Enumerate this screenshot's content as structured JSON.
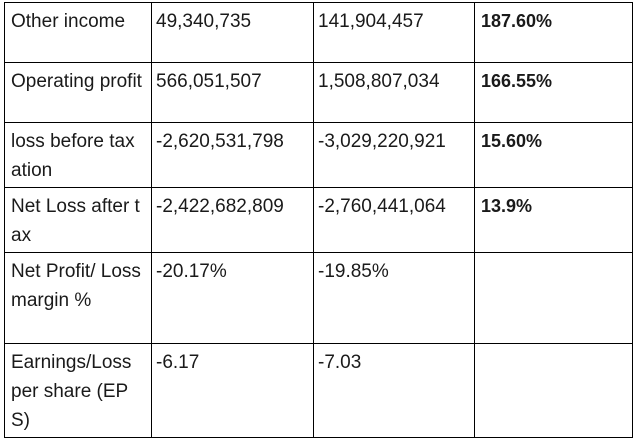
{
  "table": {
    "rows": [
      {
        "label": "Other income",
        "value_1": "49,340,735",
        "value_2": "141,904,457",
        "change": "187.60%"
      },
      {
        "label": "Operating profit",
        "value_1": "566,051,507",
        "value_2": "1,508,807,034",
        "change": "166.55%"
      },
      {
        "label": "loss before taxation",
        "value_1": "-2,620,531,798",
        "value_2": "-3,029,220,921",
        "change": "15.60%"
      },
      {
        "label": "Net Loss after tax",
        "value_1": "-2,422,682,809",
        "value_2": "-2,760,441,064",
        "change": "13.9%"
      },
      {
        "label": "Net Profit/ Loss margin %",
        "value_1": "-20.17%",
        "value_2": "-19.85%",
        "change": ""
      },
      {
        "label": "Earnings/Loss per share (EPS)",
        "value_1": "-6.17",
        "value_2": "-7.03",
        "change": ""
      }
    ]
  }
}
